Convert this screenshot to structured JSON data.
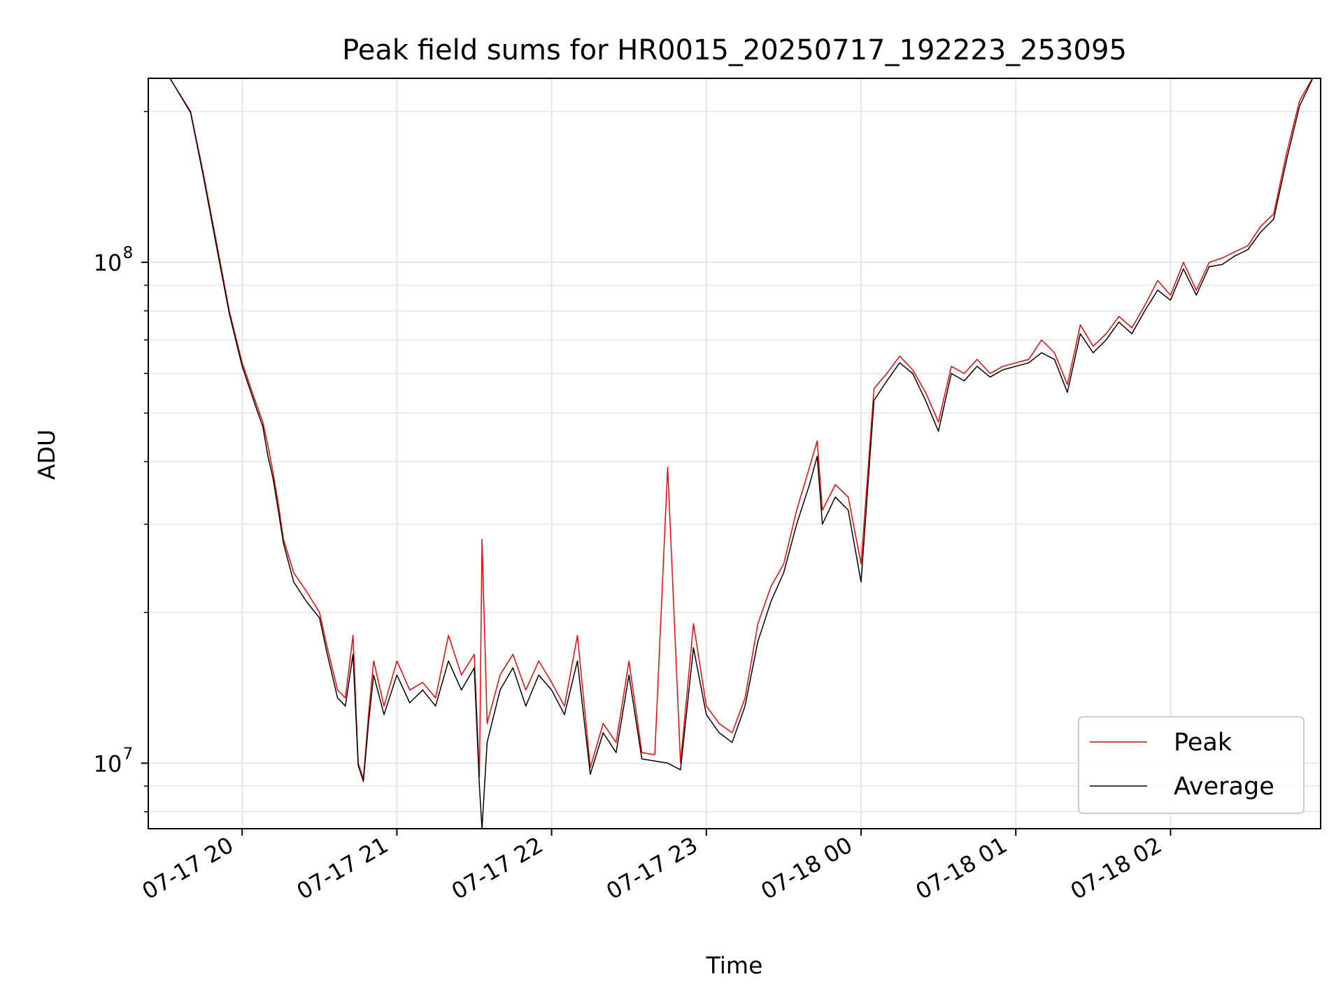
{
  "chart_data": {
    "type": "line",
    "title": "Peak field sums for HR0015_20250717_192223_253095",
    "xlabel": "Time",
    "ylabel": "ADU",
    "yscale": "log",
    "ylim": [
      7400000,
      233000000
    ],
    "xlim": [
      "07-17 19:23:36",
      "07-18 02:58:12"
    ],
    "grid": true,
    "legend_position": "lower right",
    "x_ticks": [
      "07-17 20",
      "07-17 21",
      "07-17 22",
      "07-17 23",
      "07-18 00",
      "07-18 01",
      "07-18 02"
    ],
    "y_ticks": [
      {
        "base": "10",
        "exp": "7",
        "value": 10000000
      },
      {
        "base": "10",
        "exp": "8",
        "value": 100000000
      }
    ],
    "colors": {
      "Peak": "#ff0000",
      "Average": "#000000"
    },
    "x": [
      "07-17 19:32",
      "07-17 19:40",
      "07-17 19:45",
      "07-17 19:50",
      "07-17 19:55",
      "07-17 20:00",
      "07-17 20:05",
      "07-17 20:08",
      "07-17 20:10",
      "07-17 20:12",
      "07-17 20:14",
      "07-17 20:16",
      "07-17 20:20",
      "07-17 20:25",
      "07-17 20:30",
      "07-17 20:33",
      "07-17 20:37",
      "07-17 20:40",
      "07-17 20:43",
      "07-17 20:45",
      "07-17 20:47",
      "07-17 20:49",
      "07-17 20:51",
      "07-17 20:55",
      "07-17 21:00",
      "07-17 21:05",
      "07-17 21:10",
      "07-17 21:15",
      "07-17 21:20",
      "07-17 21:25",
      "07-17 21:30",
      "07-17 21:32",
      "07-17 21:33",
      "07-17 21:35",
      "07-17 21:40",
      "07-17 21:45",
      "07-17 21:50",
      "07-17 21:55",
      "07-17 22:00",
      "07-17 22:05",
      "07-17 22:10",
      "07-17 22:15",
      "07-17 22:20",
      "07-17 22:25",
      "07-17 22:30",
      "07-17 22:35",
      "07-17 22:40",
      "07-17 22:45",
      "07-17 22:50",
      "07-17 22:55",
      "07-17 23:00",
      "07-17 23:05",
      "07-17 23:10",
      "07-17 23:15",
      "07-17 23:20",
      "07-17 23:25",
      "07-17 23:30",
      "07-17 23:35",
      "07-17 23:40",
      "07-17 23:43",
      "07-17 23:45",
      "07-17 23:50",
      "07-17 23:55",
      "07-18 00:00",
      "07-18 00:05",
      "07-18 00:10",
      "07-18 00:15",
      "07-18 00:20",
      "07-18 00:25",
      "07-18 00:30",
      "07-18 00:35",
      "07-18 00:40",
      "07-18 00:45",
      "07-18 00:50",
      "07-18 00:55",
      "07-18 01:00",
      "07-18 01:05",
      "07-18 01:10",
      "07-18 01:15",
      "07-18 01:20",
      "07-18 01:25",
      "07-18 01:30",
      "07-18 01:35",
      "07-18 01:40",
      "07-18 01:45",
      "07-18 01:50",
      "07-18 01:55",
      "07-18 02:00",
      "07-18 02:05",
      "07-18 02:10",
      "07-18 02:15",
      "07-18 02:20",
      "07-18 02:25",
      "07-18 02:30",
      "07-18 02:35",
      "07-18 02:40",
      "07-18 02:45",
      "07-18 02:50",
      "07-18 02:55"
    ],
    "series": [
      {
        "name": "Peak",
        "values": [
          233000000,
          200000000,
          150000000,
          110000000,
          80000000,
          63000000,
          53000000,
          48000000,
          43000000,
          38000000,
          33000000,
          28000000,
          24000000,
          22000000,
          20000000,
          17000000,
          14000000,
          13500000,
          18000000,
          10000000,
          9300000,
          12500000,
          16000000,
          13000000,
          16000000,
          14000000,
          14500000,
          13500000,
          18000000,
          15000000,
          16500000,
          9400000,
          28000000,
          12000000,
          15000000,
          16500000,
          14000000,
          16000000,
          14500000,
          13000000,
          18000000,
          9800000,
          12000000,
          11000000,
          16000000,
          10500000,
          10400000,
          39000000,
          10000000,
          19000000,
          13000000,
          12000000,
          11500000,
          13500000,
          19000000,
          22500000,
          25000000,
          32000000,
          39000000,
          44000000,
          32000000,
          36000000,
          34000000,
          25000000,
          56000000,
          60000000,
          65000000,
          61000000,
          55000000,
          48000000,
          62000000,
          60000000,
          64000000,
          60000000,
          62000000,
          63000000,
          64000000,
          70000000,
          66000000,
          57000000,
          75000000,
          68000000,
          72000000,
          78000000,
          74000000,
          82000000,
          92000000,
          86000000,
          100000000,
          88000000,
          100000000,
          102000000,
          105000000,
          108000000,
          118000000,
          125000000,
          165000000,
          210000000,
          233000000
        ]
      },
      {
        "name": "Average",
        "values": [
          233000000,
          199000000,
          148000000,
          108000000,
          79000000,
          62000000,
          52000000,
          47000000,
          41000000,
          37000000,
          32000000,
          27500000,
          23000000,
          21000000,
          19500000,
          16500000,
          13500000,
          13000000,
          16500000,
          9900000,
          9200000,
          12000000,
          15000000,
          12500000,
          15000000,
          13200000,
          14000000,
          13000000,
          16000000,
          14000000,
          15500000,
          9000000,
          7400000,
          11000000,
          14000000,
          15500000,
          13000000,
          15000000,
          14000000,
          12500000,
          16000000,
          9500000,
          11500000,
          10500000,
          15000000,
          10200000,
          10100000,
          10000000,
          9700000,
          17000000,
          12500000,
          11500000,
          11000000,
          13000000,
          17500000,
          21000000,
          24000000,
          30000000,
          36000000,
          41000000,
          30000000,
          34000000,
          32000000,
          23000000,
          53000000,
          58000000,
          63000000,
          60000000,
          53000000,
          46000000,
          60000000,
          58000000,
          62000000,
          59000000,
          61000000,
          62000000,
          63000000,
          66000000,
          64000000,
          55000000,
          72000000,
          66000000,
          70000000,
          76000000,
          72000000,
          80000000,
          88000000,
          84000000,
          97000000,
          86000000,
          98000000,
          99000000,
          103000000,
          106000000,
          115000000,
          122000000,
          160000000,
          205000000,
          232000000
        ]
      }
    ]
  }
}
